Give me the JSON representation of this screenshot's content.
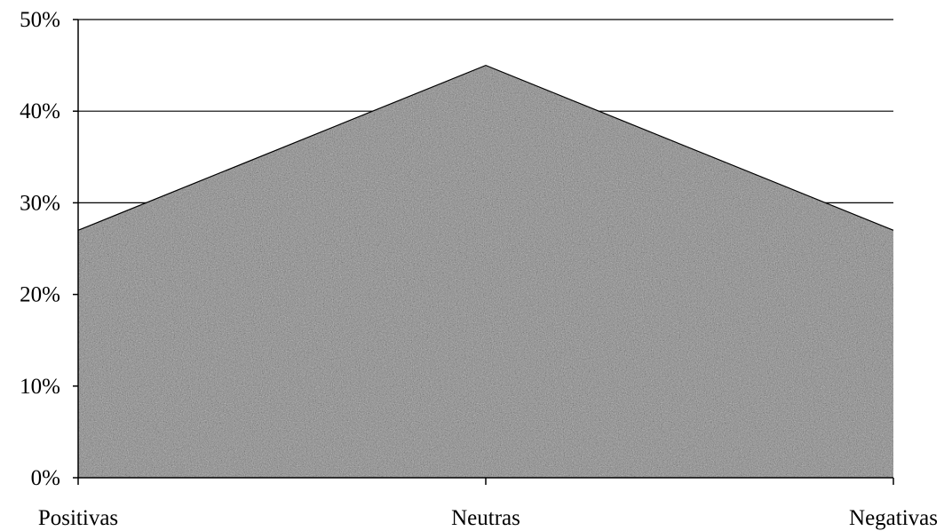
{
  "chart_data": {
    "type": "area",
    "categories": [
      "Positivas",
      "Neutras",
      "Negativas"
    ],
    "series": [
      {
        "values": [
          27,
          45,
          27
        ]
      }
    ],
    "yticks": [
      "0%",
      "10%",
      "20%",
      "30%",
      "40%",
      "50%"
    ],
    "ylim": [
      0,
      50
    ],
    "grid": true,
    "legend": "none",
    "colors": {
      "fill": "#8a8a8a",
      "outline": "#000000",
      "grid": "#000000"
    }
  }
}
